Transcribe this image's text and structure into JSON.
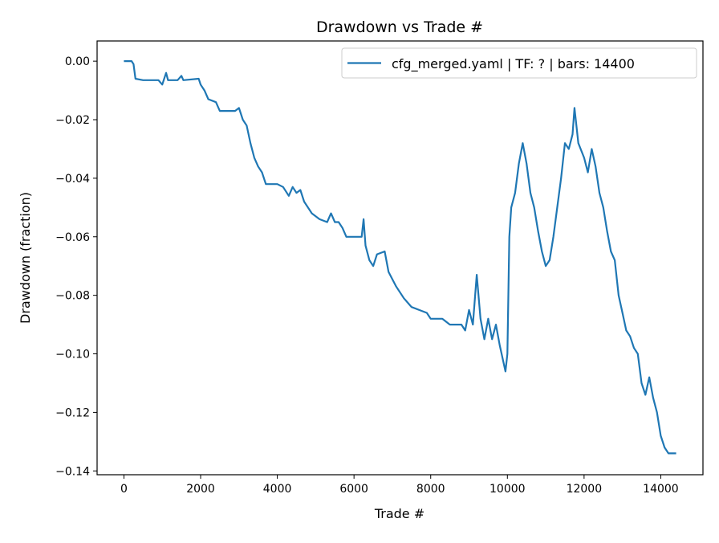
{
  "chart_data": {
    "type": "line",
    "title": "Drawdown vs Trade #",
    "xlabel": "Trade #",
    "ylabel": "Drawdown (fraction)",
    "xlim": [
      -700,
      15100
    ],
    "ylim": [
      -0.1413,
      0.0069
    ],
    "xticks": [
      0,
      2000,
      4000,
      6000,
      8000,
      10000,
      12000,
      14000
    ],
    "xtick_labels": [
      "0",
      "2000",
      "4000",
      "6000",
      "8000",
      "10000",
      "12000",
      "14000"
    ],
    "yticks": [
      0,
      -0.02,
      -0.04,
      -0.06,
      -0.08,
      -0.1,
      -0.12,
      -0.14
    ],
    "ytick_labels": [
      "0.00",
      "−0.02",
      "−0.04",
      "−0.06",
      "−0.08",
      "−0.10",
      "−0.12",
      "−0.14"
    ],
    "grid": false,
    "legend_position": "top-right",
    "series": [
      {
        "name": "cfg_merged.yaml | TF: ? | bars: 14400",
        "color": "#1f77b4",
        "x": [
          0,
          200,
          250,
          300,
          500,
          900,
          1000,
          1100,
          1150,
          1400,
          1500,
          1550,
          1950,
          2000,
          2100,
          2200,
          2400,
          2500,
          2900,
          3000,
          3100,
          3200,
          3300,
          3400,
          3500,
          3600,
          3700,
          3800,
          4000,
          4150,
          4300,
          4400,
          4500,
          4600,
          4700,
          4900,
          5100,
          5300,
          5400,
          5500,
          5600,
          5700,
          5800,
          6000,
          6200,
          6250,
          6300,
          6400,
          6500,
          6600,
          6800,
          6900,
          7100,
          7300,
          7500,
          7700,
          7900,
          8000,
          8300,
          8500,
          8800,
          8900,
          9000,
          9100,
          9200,
          9300,
          9400,
          9500,
          9600,
          9700,
          9800,
          9950,
          10000,
          10050,
          10100,
          10200,
          10300,
          10400,
          10500,
          10600,
          10700,
          10800,
          10900,
          11000,
          11100,
          11200,
          11300,
          11400,
          11500,
          11600,
          11700,
          11750,
          11850,
          12000,
          12100,
          12200,
          12300,
          12400,
          12500,
          12600,
          12700,
          12800,
          12900,
          13000,
          13100,
          13200,
          13300,
          13400,
          13500,
          13600,
          13700,
          13800,
          13900,
          14000,
          14100,
          14200,
          14400
        ],
        "y": [
          0,
          0,
          -0.001,
          -0.006,
          -0.0065,
          -0.0065,
          -0.008,
          -0.004,
          -0.0065,
          -0.0065,
          -0.005,
          -0.0065,
          -0.006,
          -0.008,
          -0.01,
          -0.013,
          -0.014,
          -0.017,
          -0.017,
          -0.016,
          -0.02,
          -0.022,
          -0.028,
          -0.033,
          -0.036,
          -0.038,
          -0.042,
          -0.042,
          -0.042,
          -0.043,
          -0.046,
          -0.043,
          -0.045,
          -0.044,
          -0.048,
          -0.052,
          -0.054,
          -0.055,
          -0.052,
          -0.055,
          -0.055,
          -0.057,
          -0.06,
          -0.06,
          -0.06,
          -0.054,
          -0.063,
          -0.068,
          -0.07,
          -0.066,
          -0.065,
          -0.072,
          -0.077,
          -0.081,
          -0.084,
          -0.085,
          -0.086,
          -0.088,
          -0.088,
          -0.09,
          -0.09,
          -0.092,
          -0.085,
          -0.09,
          -0.073,
          -0.088,
          -0.095,
          -0.088,
          -0.095,
          -0.09,
          -0.097,
          -0.106,
          -0.1,
          -0.06,
          -0.05,
          -0.045,
          -0.035,
          -0.028,
          -0.035,
          -0.045,
          -0.05,
          -0.058,
          -0.065,
          -0.07,
          -0.068,
          -0.06,
          -0.05,
          -0.04,
          -0.028,
          -0.03,
          -0.025,
          -0.016,
          -0.028,
          -0.033,
          -0.038,
          -0.03,
          -0.036,
          -0.045,
          -0.05,
          -0.058,
          -0.065,
          -0.068,
          -0.08,
          -0.086,
          -0.092,
          -0.094,
          -0.098,
          -0.1,
          -0.11,
          -0.114,
          -0.108,
          -0.115,
          -0.12,
          -0.128,
          -0.132,
          -0.134,
          -0.134
        ]
      }
    ]
  }
}
